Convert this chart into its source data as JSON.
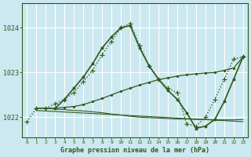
{
  "bg_color": "#cce8f0",
  "grid_color": "#aad4e0",
  "line_color": "#2d5a1b",
  "text_color": "#2d5a1b",
  "xlim": [
    -0.5,
    23.5
  ],
  "ylim": [
    1021.55,
    1024.55
  ],
  "yticks": [
    1022,
    1023,
    1024
  ],
  "xticks": [
    0,
    1,
    2,
    3,
    4,
    5,
    6,
    7,
    8,
    9,
    10,
    11,
    12,
    13,
    14,
    15,
    16,
    17,
    18,
    19,
    20,
    21,
    22,
    23
  ],
  "xlabel": "Graphe pression niveau de la mer (hPa)",
  "series": [
    {
      "x": [
        0,
        1,
        2,
        3,
        4,
        5,
        6,
        7,
        8,
        9,
        10,
        11,
        12,
        13,
        14,
        15,
        16,
        17,
        18,
        19,
        20,
        21,
        22,
        23
      ],
      "y": [
        1021.9,
        1022.2,
        1022.2,
        1022.3,
        1022.4,
        1022.55,
        1022.8,
        1023.05,
        1023.4,
        1023.7,
        1024.0,
        1024.1,
        1023.6,
        1023.15,
        1022.85,
        1022.65,
        1022.55,
        1021.85,
        1021.8,
        1022.0,
        1022.4,
        1022.85,
        1023.3,
        1023.35
      ],
      "marker": "+",
      "linestyle": "dotted",
      "linewidth": 1.0,
      "markersize": 5
    },
    {
      "x": [
        3,
        4,
        5,
        6,
        7,
        8,
        9,
        10,
        11,
        12,
        13,
        14,
        15,
        16,
        17,
        18,
        19,
        20,
        21,
        22,
        23
      ],
      "y": [
        1022.2,
        1022.4,
        1022.65,
        1022.9,
        1023.2,
        1023.55,
        1023.8,
        1024.0,
        1024.05,
        1023.55,
        1023.15,
        1022.85,
        1022.6,
        1022.4,
        1022.1,
        1021.75,
        1021.8,
        1021.95,
        1022.35,
        1022.85,
        1023.35
      ],
      "marker": ".",
      "linestyle": "solid",
      "linewidth": 1.2,
      "markersize": 4
    },
    {
      "x": [
        1,
        2,
        3,
        4,
        5,
        6,
        7,
        8,
        9,
        10,
        11,
        12,
        13,
        14,
        15,
        16,
        17,
        18,
        19,
        20,
        21,
        22,
        23
      ],
      "y": [
        1022.2,
        1022.2,
        1022.2,
        1022.22,
        1022.24,
        1022.28,
        1022.35,
        1022.42,
        1022.5,
        1022.58,
        1022.65,
        1022.72,
        1022.78,
        1022.84,
        1022.88,
        1022.92,
        1022.95,
        1022.97,
        1022.99,
        1023.0,
        1023.05,
        1023.1,
        1023.35
      ],
      "marker": ".",
      "linestyle": "solid",
      "linewidth": 0.9,
      "markersize": 3
    },
    {
      "x": [
        1,
        2,
        3,
        4,
        5,
        6,
        7,
        8,
        9,
        10,
        11,
        12,
        13,
        14,
        15,
        16,
        17,
        18,
        19,
        20,
        21,
        22,
        23
      ],
      "y": [
        1022.2,
        1022.2,
        1022.18,
        1022.17,
        1022.15,
        1022.14,
        1022.12,
        1022.1,
        1022.07,
        1022.05,
        1022.02,
        1022.0,
        1021.99,
        1021.98,
        1021.97,
        1021.96,
        1021.96,
        1021.95,
        1021.95,
        1021.94,
        1021.94,
        1021.94,
        1021.95
      ],
      "marker": null,
      "linestyle": "solid",
      "linewidth": 0.8,
      "markersize": 0
    },
    {
      "x": [
        1,
        23
      ],
      "y": [
        1022.15,
        1021.9
      ],
      "marker": null,
      "linestyle": "solid",
      "linewidth": 0.8,
      "markersize": 0
    }
  ]
}
